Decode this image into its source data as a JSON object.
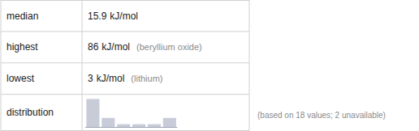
{
  "chart_data": {
    "type": "bar",
    "categories": [
      null,
      null,
      null,
      null,
      null,
      null
    ],
    "values": [
      9,
      3,
      1,
      1,
      1,
      3
    ],
    "color": "#c8ccd8",
    "ylim": [
      0,
      9.45
    ],
    "tick_labels": false,
    "annotations": [
      [
        "median",
        "15.9",
        "kJ/mol"
      ],
      [
        "highest",
        "86",
        "kJ/mol",
        "(beryllium oxide)"
      ],
      [
        "lowest",
        "3",
        "kJ/mol",
        "(lithium)"
      ],
      [
        "distribution"
      ],
      [
        "(based on 18 values; 2 unavailable)"
      ]
    ]
  }
}
